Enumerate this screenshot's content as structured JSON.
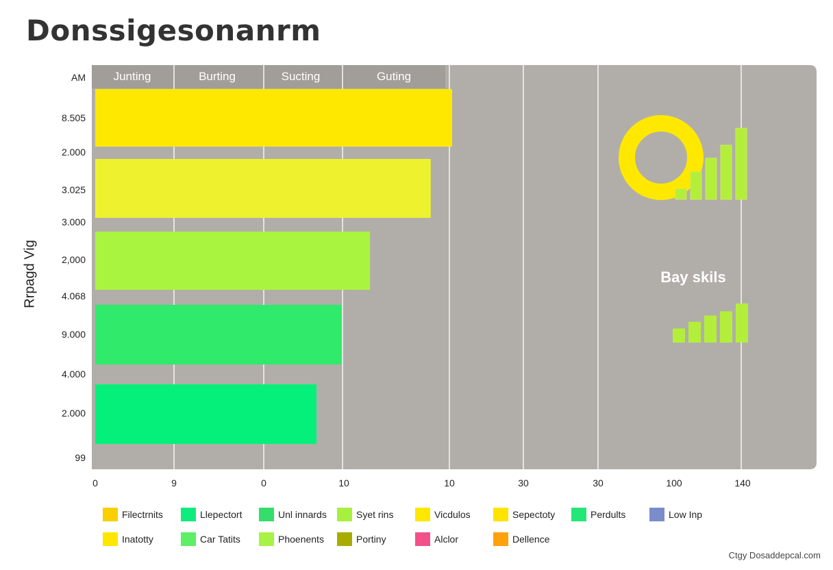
{
  "chart_data": {
    "type": "bar",
    "orientation": "horizontal",
    "title": "Donssigesonanrm",
    "ylabel": "Rrpagd Vig",
    "column_headers": [
      "Junting",
      "Burting",
      "Sucting",
      "Guting"
    ],
    "y_tick_labels": [
      "AM",
      "8.505",
      "2.000",
      "3.025",
      "3.000",
      "2,000",
      "4.068",
      "9.000",
      "4.000",
      "2.000",
      "99"
    ],
    "x_tick_labels": [
      "0",
      "9",
      "0",
      "10",
      "10",
      "30",
      "30",
      "100",
      "140"
    ],
    "values": [
      10.0,
      9.4,
      7.7,
      6.9,
      6.2
    ],
    "bar_colors": [
      "#FFE800",
      "#EEF22E",
      "#A9F43F",
      "#2FEA6B",
      "#05F07A"
    ],
    "xlim": [
      0,
      14
    ],
    "grid": true,
    "inset": {
      "label": "Bay skils",
      "ring_color": "#FFE800",
      "top_bars": [
        0.13,
        0.34,
        0.51,
        0.67,
        0.88
      ],
      "bottom_bars": [
        0.36,
        0.53,
        0.69,
        0.8,
        1.0
      ],
      "bar_color": "#B3EF3A"
    },
    "legend": [
      [
        {
          "label": "Filectrnits",
          "color": "#F9CF00"
        },
        {
          "label": "Llepectort",
          "color": "#10EB7E"
        },
        {
          "label": "Unl innards",
          "color": "#35DE6A"
        },
        {
          "label": "Syet rins",
          "color": "#A7F03E"
        },
        {
          "label": "Vicdulos",
          "color": "#FFE700"
        },
        {
          "label": "Sepectoty",
          "color": "#FFE400"
        },
        {
          "label": "Perdults",
          "color": "#23E877"
        },
        {
          "label": "Low Inp",
          "color": "#7C8CCB"
        }
      ],
      [
        {
          "label": "Inatotty",
          "color": "#FFE600"
        },
        {
          "label": "Car Tatits",
          "color": "#5DEF66"
        },
        {
          "label": "Phoenents",
          "color": "#A7F345"
        },
        {
          "label": "Portiny",
          "color": "#A8AC00"
        },
        {
          "label": "Alclor",
          "color": "#F3508A"
        },
        {
          "label": "Dellence",
          "color": "#FFA20C"
        }
      ]
    ],
    "colors": {
      "panel": "#B1AEA9",
      "header_band": "#A19E99",
      "grid": "#F2F2F2",
      "text": "#222222"
    }
  },
  "watermark": "Ctgy Dosaddepcal.com"
}
